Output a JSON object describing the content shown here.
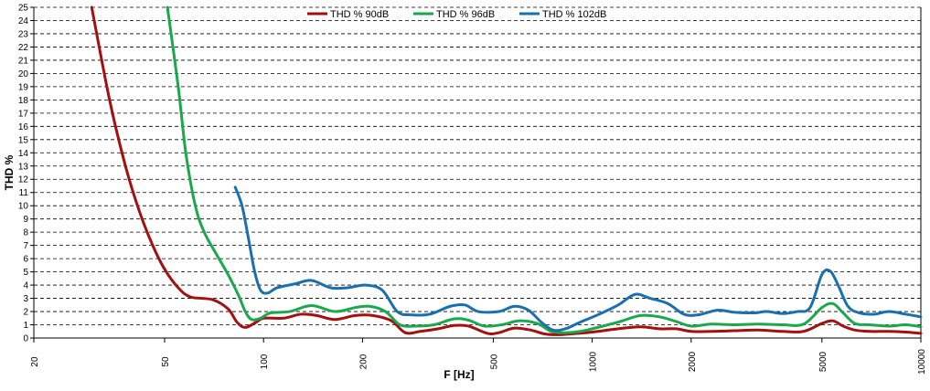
{
  "chart_data": {
    "type": "line",
    "title": "",
    "xlabel": "F [Hz]",
    "ylabel": "THD %",
    "x_scale": "log",
    "xlim": [
      20,
      10000
    ],
    "ylim": [
      0,
      25
    ],
    "grid": "horizontal dashed",
    "legend_position": "top-center",
    "x_ticks": [
      "20",
      "50",
      "100",
      "200",
      "500",
      "1000",
      "2000",
      "5000",
      "10000"
    ],
    "y_ticks": [
      "0",
      "1",
      "2",
      "3",
      "4",
      "5",
      "6",
      "7",
      "8",
      "9",
      "10",
      "11",
      "12",
      "13",
      "14",
      "15",
      "16",
      "17",
      "18",
      "19",
      "20",
      "21",
      "22",
      "23",
      "24",
      "25"
    ],
    "series": [
      {
        "name": "THD % 90dB",
        "color": "#a50f0f",
        "points": [
          [
            30,
            25
          ],
          [
            34,
            18
          ],
          [
            38,
            13
          ],
          [
            42,
            9.5
          ],
          [
            46,
            7
          ],
          [
            50,
            5.2
          ],
          [
            55,
            3.8
          ],
          [
            60,
            3.1
          ],
          [
            70,
            2.9
          ],
          [
            78,
            2.2
          ],
          [
            83,
            1.2
          ],
          [
            88,
            0.8
          ],
          [
            95,
            1.2
          ],
          [
            100,
            1.5
          ],
          [
            115,
            1.5
          ],
          [
            130,
            1.8
          ],
          [
            145,
            1.7
          ],
          [
            165,
            1.4
          ],
          [
            190,
            1.7
          ],
          [
            215,
            1.7
          ],
          [
            245,
            1.3
          ],
          [
            270,
            0.4
          ],
          [
            300,
            0.5
          ],
          [
            340,
            0.7
          ],
          [
            380,
            0.95
          ],
          [
            420,
            0.9
          ],
          [
            480,
            0.35
          ],
          [
            520,
            0.4
          ],
          [
            580,
            0.75
          ],
          [
            650,
            0.6
          ],
          [
            720,
            0.3
          ],
          [
            800,
            0.25
          ],
          [
            900,
            0.35
          ],
          [
            1000,
            0.45
          ],
          [
            1200,
            0.7
          ],
          [
            1400,
            0.85
          ],
          [
            1600,
            0.7
          ],
          [
            1800,
            0.7
          ],
          [
            2000,
            0.5
          ],
          [
            2300,
            0.5
          ],
          [
            2700,
            0.55
          ],
          [
            3200,
            0.6
          ],
          [
            3800,
            0.5
          ],
          [
            4400,
            0.5
          ],
          [
            5000,
            1.1
          ],
          [
            5400,
            1.3
          ],
          [
            5800,
            0.9
          ],
          [
            6300,
            0.6
          ],
          [
            7000,
            0.5
          ],
          [
            8000,
            0.5
          ],
          [
            9000,
            0.45
          ],
          [
            10000,
            0.35
          ]
        ]
      },
      {
        "name": "THD % 96dB",
        "color": "#1aa84d",
        "points": [
          [
            51,
            25
          ],
          [
            55,
            19
          ],
          [
            58,
            14
          ],
          [
            62,
            10
          ],
          [
            66,
            8
          ],
          [
            72,
            6.3
          ],
          [
            78,
            4.8
          ],
          [
            84,
            3.2
          ],
          [
            88,
            2
          ],
          [
            92,
            1.4
          ],
          [
            98,
            1.5
          ],
          [
            105,
            1.9
          ],
          [
            120,
            2.0
          ],
          [
            140,
            2.45
          ],
          [
            165,
            2.0
          ],
          [
            190,
            2.3
          ],
          [
            210,
            2.4
          ],
          [
            235,
            2.0
          ],
          [
            260,
            1.0
          ],
          [
            290,
            0.9
          ],
          [
            330,
            1.0
          ],
          [
            380,
            1.45
          ],
          [
            420,
            1.35
          ],
          [
            470,
            0.9
          ],
          [
            530,
            1.0
          ],
          [
            600,
            1.3
          ],
          [
            680,
            1.1
          ],
          [
            750,
            0.5
          ],
          [
            820,
            0.4
          ],
          [
            920,
            0.5
          ],
          [
            1000,
            0.7
          ],
          [
            1200,
            1.2
          ],
          [
            1400,
            1.7
          ],
          [
            1600,
            1.6
          ],
          [
            1800,
            1.25
          ],
          [
            2000,
            0.9
          ],
          [
            2300,
            1.05
          ],
          [
            2700,
            1.0
          ],
          [
            3200,
            1.05
          ],
          [
            3800,
            1.0
          ],
          [
            4400,
            1.05
          ],
          [
            5000,
            2.3
          ],
          [
            5400,
            2.6
          ],
          [
            5800,
            1.9
          ],
          [
            6300,
            1.1
          ],
          [
            7000,
            1.0
          ],
          [
            8000,
            0.9
          ],
          [
            9000,
            1.0
          ],
          [
            10000,
            0.85
          ]
        ]
      },
      {
        "name": "THD % 102dB",
        "color": "#1a6fb0",
        "points": [
          [
            82,
            11.4
          ],
          [
            86,
            10
          ],
          [
            90,
            7.5
          ],
          [
            94,
            5
          ],
          [
            98,
            3.6
          ],
          [
            103,
            3.4
          ],
          [
            110,
            3.8
          ],
          [
            125,
            4.1
          ],
          [
            140,
            4.35
          ],
          [
            160,
            3.8
          ],
          [
            180,
            3.8
          ],
          [
            205,
            4.0
          ],
          [
            230,
            3.6
          ],
          [
            255,
            2.0
          ],
          [
            280,
            1.75
          ],
          [
            320,
            1.8
          ],
          [
            370,
            2.4
          ],
          [
            410,
            2.5
          ],
          [
            450,
            2.0
          ],
          [
            520,
            2.0
          ],
          [
            580,
            2.4
          ],
          [
            640,
            2.1
          ],
          [
            700,
            1.2
          ],
          [
            760,
            0.6
          ],
          [
            830,
            0.7
          ],
          [
            920,
            1.2
          ],
          [
            1050,
            1.8
          ],
          [
            1200,
            2.5
          ],
          [
            1350,
            3.3
          ],
          [
            1500,
            3.0
          ],
          [
            1700,
            2.6
          ],
          [
            1900,
            1.8
          ],
          [
            2100,
            1.75
          ],
          [
            2400,
            2.1
          ],
          [
            2700,
            1.95
          ],
          [
            3100,
            1.9
          ],
          [
            3400,
            2.0
          ],
          [
            3800,
            1.85
          ],
          [
            4200,
            2.0
          ],
          [
            4600,
            2.3
          ],
          [
            5000,
            4.8
          ],
          [
            5300,
            5.05
          ],
          [
            5600,
            4.0
          ],
          [
            6000,
            2.4
          ],
          [
            6500,
            1.9
          ],
          [
            7200,
            1.8
          ],
          [
            8000,
            2.0
          ],
          [
            9000,
            1.8
          ],
          [
            10000,
            1.6
          ]
        ]
      }
    ]
  }
}
